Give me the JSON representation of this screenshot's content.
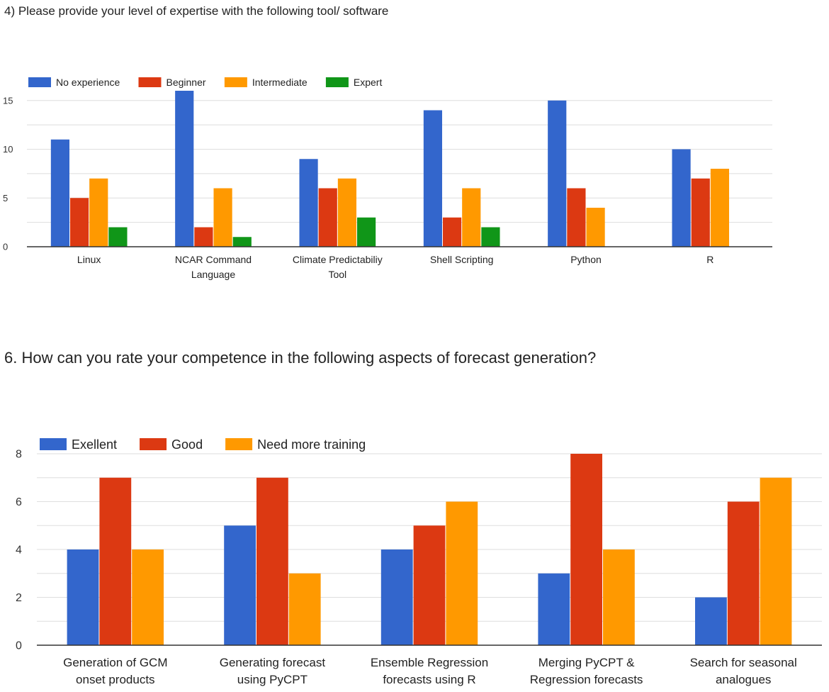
{
  "chart_data": [
    {
      "type": "bar",
      "title": "4) Please provide your level of expertise with the following tool/ software",
      "categories": [
        [
          "Linux"
        ],
        [
          "NCAR Command",
          "Language"
        ],
        [
          "Climate Predictabiliy",
          "Tool"
        ],
        [
          "Shell Scripting"
        ],
        [
          "Python"
        ],
        [
          "R"
        ]
      ],
      "series": [
        {
          "name": "No experience",
          "color": "#3366cc",
          "values": [
            11,
            16,
            9,
            14,
            15,
            10
          ]
        },
        {
          "name": "Beginner",
          "color": "#dc3912",
          "values": [
            5,
            2,
            6,
            3,
            6,
            7
          ]
        },
        {
          "name": "Intermediate",
          "color": "#ff9900",
          "values": [
            7,
            6,
            7,
            6,
            4,
            8
          ]
        },
        {
          "name": "Expert",
          "color": "#109618",
          "values": [
            2,
            1,
            3,
            2,
            0,
            0
          ]
        }
      ],
      "yticks": [
        0,
        5,
        10,
        15
      ],
      "ylim": [
        0,
        16
      ],
      "legend_position": "top",
      "grid": true
    },
    {
      "type": "bar",
      "title": "6. How can you rate your competence in the following aspects of forecast generation?",
      "categories": [
        [
          "Generation of GCM",
          "onset products"
        ],
        [
          "Generating forecast",
          "using PyCPT"
        ],
        [
          "Ensemble Regression",
          "forecasts using R"
        ],
        [
          "Merging PyCPT &",
          "Regression forecasts"
        ],
        [
          "Search for seasonal",
          "analogues"
        ]
      ],
      "series": [
        {
          "name": "Exellent",
          "color": "#3366cc",
          "values": [
            4,
            5,
            4,
            3,
            2
          ]
        },
        {
          "name": "Good",
          "color": "#dc3912",
          "values": [
            7,
            7,
            5,
            8,
            6
          ]
        },
        {
          "name": "Need more training",
          "color": "#ff9900",
          "values": [
            4,
            3,
            6,
            4,
            7
          ]
        }
      ],
      "yticks": [
        0,
        2,
        4,
        6,
        8
      ],
      "ylim": [
        0,
        8
      ],
      "legend_position": "top",
      "grid": true
    }
  ]
}
